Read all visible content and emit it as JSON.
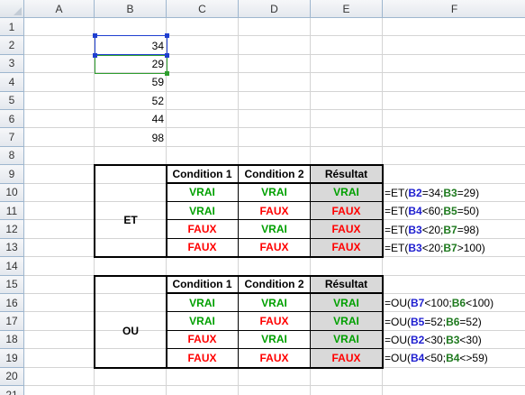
{
  "columns": [
    "A",
    "B",
    "C",
    "D",
    "E",
    "F"
  ],
  "rows": [
    "1",
    "2",
    "3",
    "4",
    "5",
    "6",
    "7",
    "8",
    "9",
    "10",
    "11",
    "12",
    "13",
    "14",
    "15",
    "16",
    "17",
    "18",
    "19",
    "20",
    "21"
  ],
  "values": [
    "34",
    "29",
    "59",
    "52",
    "44",
    "98"
  ],
  "et_table": {
    "label": "ET",
    "headers": [
      "Condition 1",
      "Condition 2",
      "Résultat"
    ],
    "rows": [
      {
        "c1": "VRAI",
        "c2": "VRAI",
        "r": "VRAI",
        "f": {
          "pre": "=ET(",
          "a": "B2",
          "op1": "=34;",
          "b": "B3",
          "op2": "=29)"
        }
      },
      {
        "c1": "VRAI",
        "c2": "FAUX",
        "r": "FAUX",
        "f": {
          "pre": "=ET(",
          "a": "B4",
          "op1": "<60;",
          "b": "B5",
          "op2": "=50)"
        }
      },
      {
        "c1": "FAUX",
        "c2": "VRAI",
        "r": "FAUX",
        "f": {
          "pre": "=ET(",
          "a": "B3",
          "op1": "<20;",
          "b": "B7",
          "op2": "=98)"
        }
      },
      {
        "c1": "FAUX",
        "c2": "FAUX",
        "r": "FAUX",
        "f": {
          "pre": "=ET(",
          "a": "B3",
          "op1": "<20;",
          "b": "B7",
          "op2": ">100)"
        }
      }
    ]
  },
  "ou_table": {
    "label": "OU",
    "headers": [
      "Condition 1",
      "Condition 2",
      "Résultat"
    ],
    "rows": [
      {
        "c1": "VRAI",
        "c2": "VRAI",
        "r": "VRAI",
        "f": {
          "pre": "=OU(",
          "a": "B7",
          "op1": "<100;",
          "b": "B6",
          "op2": "<100)"
        }
      },
      {
        "c1": "VRAI",
        "c2": "FAUX",
        "r": "VRAI",
        "f": {
          "pre": "=OU(",
          "a": "B5",
          "op1": "=52;",
          "b": "B6",
          "op2": "=52)"
        }
      },
      {
        "c1": "FAUX",
        "c2": "VRAI",
        "r": "VRAI",
        "f": {
          "pre": "=OU(",
          "a": "B2",
          "op1": "<30;",
          "b": "B3",
          "op2": "<30)"
        }
      },
      {
        "c1": "FAUX",
        "c2": "FAUX",
        "r": "FAUX",
        "f": {
          "pre": "=OU(",
          "a": "B4",
          "op1": "<50;",
          "b": "B4",
          "op2": "<>59)"
        }
      }
    ]
  },
  "colors": {
    "vrai": "#00a000",
    "faux": "#ff0000",
    "ref_first": "#1f1fd0",
    "ref_second": "#1f7a1f",
    "result_fill": "#d9d9d9"
  }
}
